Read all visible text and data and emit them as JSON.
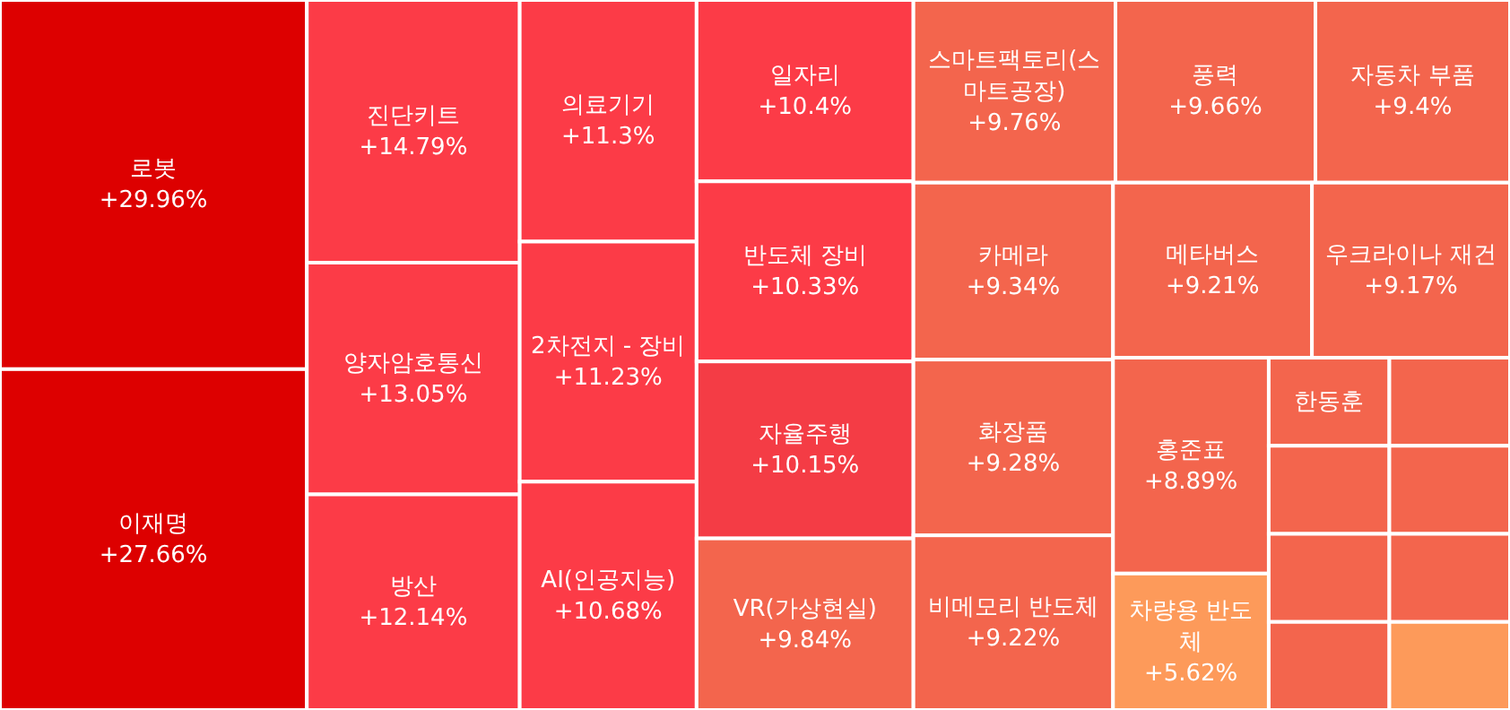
{
  "chart_data": {
    "type": "other",
    "categories": [
      "로봇",
      "이재명",
      "진단키트",
      "양자암호통신",
      "방산",
      "의료기기",
      "2차전지 - 장비",
      "AI(인공지능)",
      "일자리",
      "반도체 장비",
      "자율주행",
      "VR(가상현실)",
      "스마트팩토리(스마트공장)",
      "풍력",
      "한동훈",
      "자동차 부품",
      "카메라",
      "메타버스",
      "우크라이나 재건",
      "화장품",
      "비메모리 반도체",
      "홍준표",
      "차량용 반도체",
      null,
      null,
      null,
      null,
      null,
      null,
      null
    ],
    "values": [
      29.96,
      27.66,
      14.79,
      13.05,
      12.14,
      11.3,
      11.23,
      10.68,
      10.4,
      10.33,
      10.15,
      9.84,
      9.76,
      9.66,
      null,
      9.4,
      9.34,
      9.21,
      9.17,
      9.28,
      9.22,
      8.89,
      5.62,
      null,
      null,
      null,
      null,
      null,
      null,
      null
    ],
    "value_labels": [
      "+29.96%",
      "+27.66%",
      "+14.79%",
      "+13.05%",
      "+12.14%",
      "+11.3%",
      "+11.23%",
      "+10.68%",
      "+10.4%",
      "+10.33%",
      "+10.15%",
      "+9.84%",
      "+9.76%",
      "+9.66%",
      null,
      "+9.4%",
      "+9.34%",
      "+9.21%",
      "+9.17%",
      "+9.28%",
      "+9.22%",
      "+8.89%",
      "+5.62%",
      null,
      null,
      null,
      null,
      null,
      null,
      null
    ],
    "colors": [
      "#dd0000",
      "#dd0000",
      "#fc3b47",
      "#fc3b47",
      "#fc3b47",
      "#fc3b47",
      "#fc3b47",
      "#fc3b47",
      "#fc3b47",
      "#fc3b47",
      "#f43c45",
      "#f3654d",
      "#f3654d",
      "#f3654d",
      "#f3654d",
      "#f3654d",
      "#f3654d",
      "#f3654d",
      "#f3654d",
      "#f3654d",
      "#f3654d",
      "#f3654d",
      "#fd9a5a",
      "#f3654d",
      "#f3654d",
      "#f3654d",
      "#f3654d",
      "#f3654d",
      "#f3654d",
      "#fd9a5a"
    ]
  }
}
